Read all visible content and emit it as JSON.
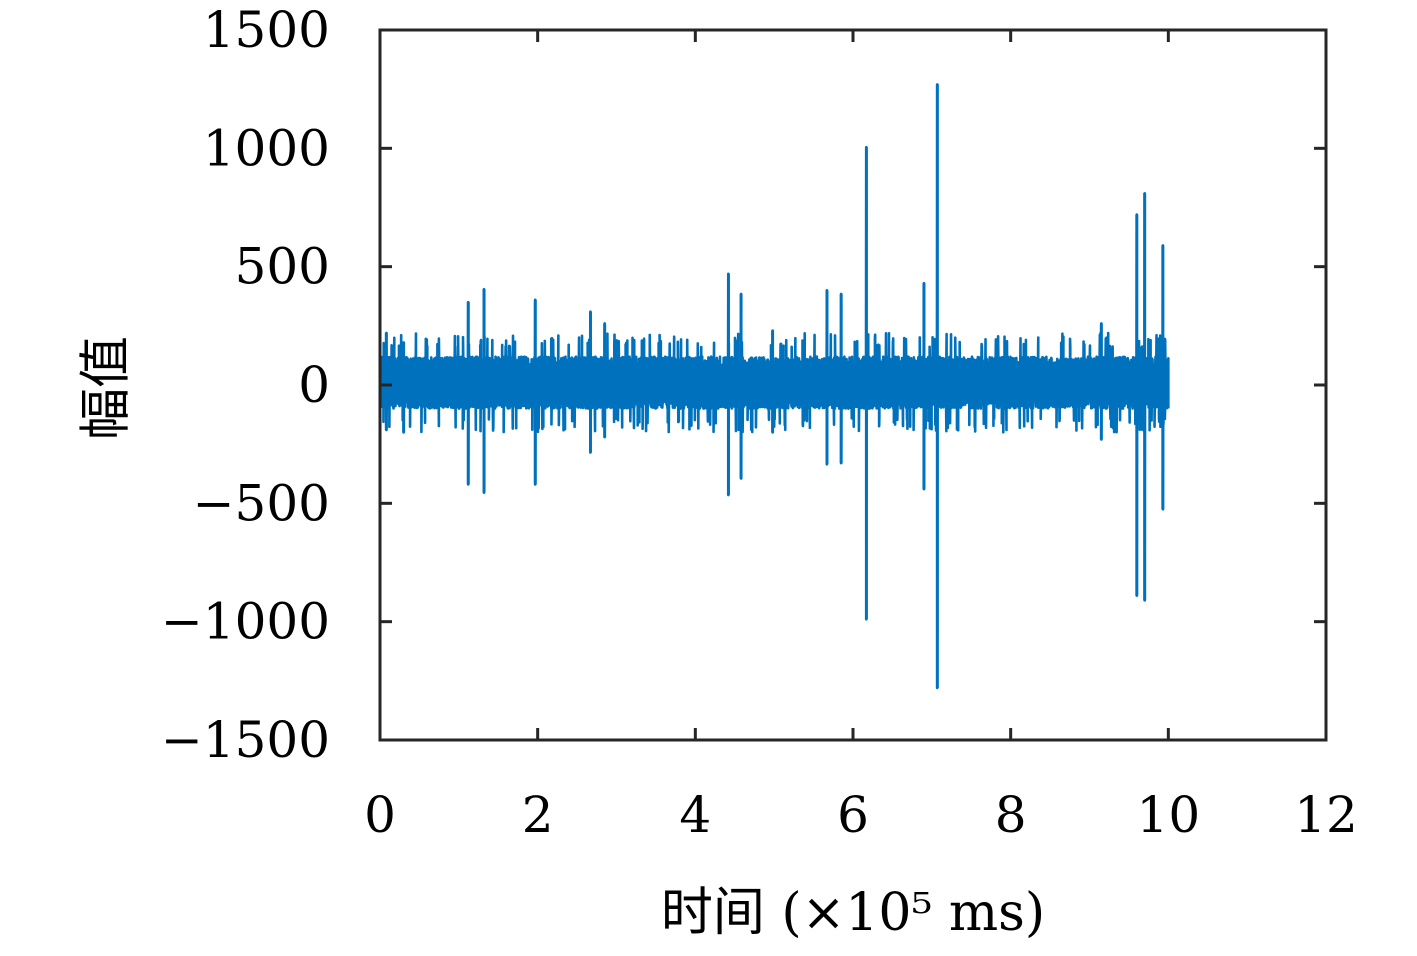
{
  "chart_data": {
    "type": "line",
    "xlabel": "时间 (×10⁵ ms)",
    "ylabel": "幅值",
    "xlim": [
      0,
      12
    ],
    "ylim": [
      -1500,
      1500
    ],
    "xticks": [
      0,
      2,
      4,
      6,
      8,
      10,
      12
    ],
    "yticks": [
      -1500,
      -1000,
      -500,
      0,
      500,
      1000,
      1500
    ],
    "xtick_labels": [
      "0",
      "2",
      "4",
      "6",
      "8",
      "10",
      "12"
    ],
    "ytick_labels": [
      "−1500",
      "−1000",
      "−500",
      "0",
      "500",
      "1000",
      "1500"
    ],
    "grid": false,
    "series": [
      {
        "color": "#0072BD",
        "x_range": [
          0,
          10
        ],
        "noise_band": [
          -100,
          120
        ],
        "spikes": [
          {
            "x": 0.08,
            "max": 220,
            "min": -190
          },
          {
            "x": 0.3,
            "max": 180,
            "min": -200
          },
          {
            "x": 1.12,
            "max": 350,
            "min": -420
          },
          {
            "x": 1.32,
            "max": 405,
            "min": -455
          },
          {
            "x": 1.97,
            "max": 360,
            "min": -420
          },
          {
            "x": 2.67,
            "max": 310,
            "min": -285
          },
          {
            "x": 2.85,
            "max": 260,
            "min": -220
          },
          {
            "x": 4.42,
            "max": 470,
            "min": -465
          },
          {
            "x": 4.58,
            "max": 385,
            "min": -395
          },
          {
            "x": 4.98,
            "max": 230,
            "min": -200
          },
          {
            "x": 5.67,
            "max": 400,
            "min": -335
          },
          {
            "x": 5.85,
            "max": 385,
            "min": -330
          },
          {
            "x": 6.17,
            "max": 1005,
            "min": -990
          },
          {
            "x": 6.9,
            "max": 430,
            "min": -440
          },
          {
            "x": 7.07,
            "max": 1270,
            "min": -1280
          },
          {
            "x": 9.15,
            "max": 260,
            "min": -230
          },
          {
            "x": 9.6,
            "max": 720,
            "min": -890
          },
          {
            "x": 9.7,
            "max": 810,
            "min": -910
          },
          {
            "x": 9.93,
            "max": 590,
            "min": -525
          }
        ]
      }
    ]
  }
}
